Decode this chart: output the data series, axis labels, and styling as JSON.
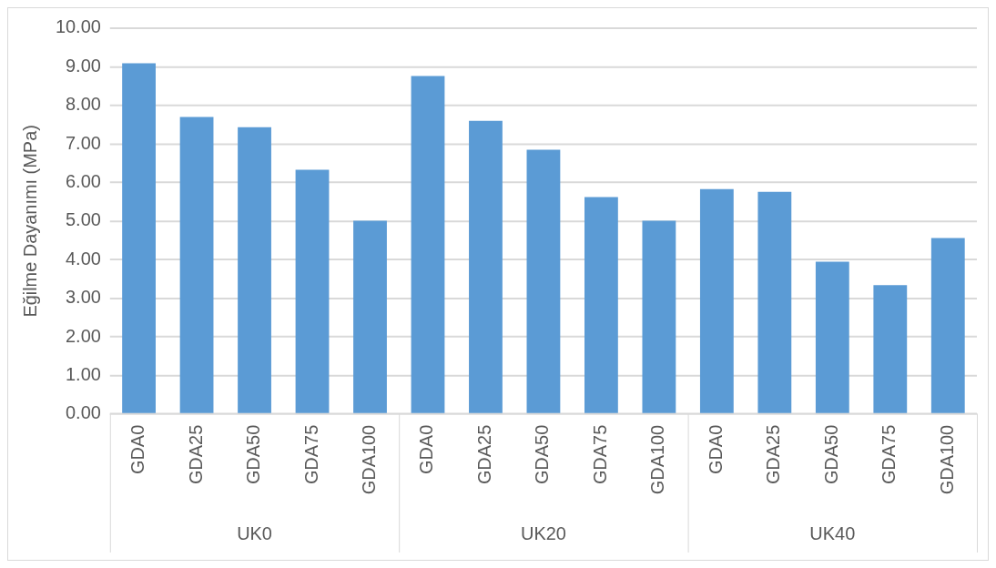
{
  "chart_data": {
    "type": "bar",
    "ylabel": "Eğilme Dayanımı (MPa)",
    "categories": [
      "GDA0",
      "GDA25",
      "GDA50",
      "GDA75",
      "GDA100",
      "GDA0",
      "GDA25",
      "GDA50",
      "GDA75",
      "GDA100",
      "GDA0",
      "GDA25",
      "GDA50",
      "GDA75",
      "GDA100"
    ],
    "values": [
      9.09,
      7.7,
      7.43,
      6.33,
      5.01,
      8.76,
      7.6,
      6.85,
      5.62,
      5.01,
      5.83,
      5.76,
      3.95,
      3.34,
      4.56
    ],
    "color": "#5b9bd5",
    "annotations": [
      "UK0",
      "UK20",
      "UK40"
    ],
    "ylim": [
      0,
      10
    ],
    "yticks": [
      {
        "value": 0,
        "label": "0.00"
      },
      {
        "value": 1,
        "label": "1.00"
      },
      {
        "value": 2,
        "label": "2.00"
      },
      {
        "value": 3,
        "label": "3.00"
      },
      {
        "value": 4,
        "label": "4.00"
      },
      {
        "value": 5,
        "label": "5.00"
      },
      {
        "value": 6,
        "label": "6.00"
      },
      {
        "value": 7,
        "label": "7.00"
      },
      {
        "value": 8,
        "label": "8.00"
      },
      {
        "value": 9,
        "label": "9.00"
      },
      {
        "value": 10,
        "label": "10.00"
      }
    ],
    "grid": "y",
    "legend": false
  }
}
